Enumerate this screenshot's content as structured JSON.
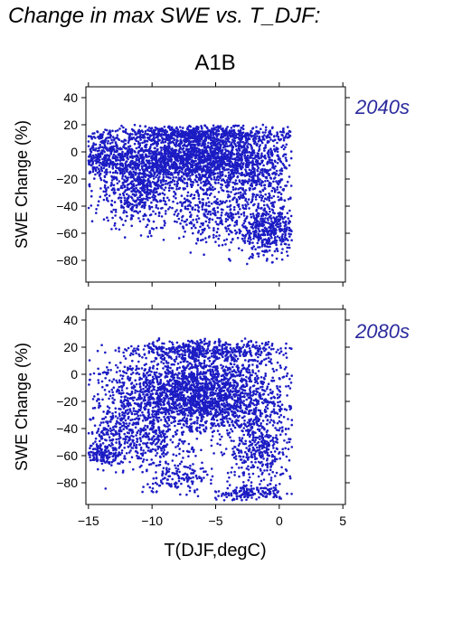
{
  "title": "Change in max SWE vs. T_DJF:",
  "scenario": "A1B",
  "colors": {
    "points": "#1c1cc4",
    "period_text": "#2b2b9e"
  },
  "chart_data": [
    {
      "type": "scatter",
      "panel_label": "2040s",
      "ylabel": "SWE Change (%)",
      "xlabel": "",
      "xlim": [
        -15.2,
        5.2
      ],
      "ylim": [
        -96,
        48
      ],
      "yticks": [
        40,
        20,
        0,
        -20,
        -40,
        -60,
        -80
      ],
      "xticks": [
        -15,
        -10,
        -5,
        0,
        5
      ],
      "x_tick_labels_shown": false,
      "points_per_cluster": "dense cloud",
      "clusters": [
        {
          "x": -7,
          "y": -5,
          "sx": 3.8,
          "sy": 10,
          "n": 2200
        },
        {
          "x": -11,
          "y": -30,
          "sx": 1.8,
          "sy": 13,
          "n": 500
        },
        {
          "x": -5.5,
          "y": -45,
          "sx": 1.8,
          "sy": 11,
          "n": 300
        },
        {
          "x": -1,
          "y": -58,
          "sx": 1.2,
          "sy": 9,
          "n": 450
        },
        {
          "x": -6,
          "y": 13,
          "sx": 3.5,
          "sy": 3,
          "n": 600
        },
        {
          "x": -14,
          "y": -2,
          "sx": 0.8,
          "sy": 9,
          "n": 180
        },
        {
          "x": -1.5,
          "y": -22,
          "sx": 1.5,
          "sy": 12,
          "n": 300
        }
      ],
      "y_range_observed": [
        -83,
        20
      ],
      "x_range_observed": [
        -15,
        1
      ]
    },
    {
      "type": "scatter",
      "panel_label": "2080s",
      "ylabel": "SWE Change (%)",
      "xlabel": "T(DJF,degC)",
      "xlim": [
        -15.2,
        5.2
      ],
      "ylim": [
        -96,
        48
      ],
      "yticks": [
        40,
        20,
        0,
        -20,
        -40,
        -60,
        -80
      ],
      "xticks": [
        -15,
        -10,
        -5,
        0,
        5
      ],
      "x_tick_labels_shown": true,
      "clusters": [
        {
          "x": -6.5,
          "y": -15,
          "sx": 3.5,
          "sy": 14,
          "n": 2300
        },
        {
          "x": -11.5,
          "y": -45,
          "sx": 2.3,
          "sy": 12,
          "n": 550
        },
        {
          "x": -5.5,
          "y": 17,
          "sx": 3.2,
          "sy": 4,
          "n": 500
        },
        {
          "x": -2.5,
          "y": -88,
          "sx": 1.3,
          "sy": 3,
          "n": 160
        },
        {
          "x": -1.5,
          "y": -55,
          "sx": 1.4,
          "sy": 14,
          "n": 400
        },
        {
          "x": -14,
          "y": -60,
          "sx": 0.8,
          "sy": 3,
          "n": 120
        },
        {
          "x": -8,
          "y": -75,
          "sx": 1.4,
          "sy": 6,
          "n": 140
        }
      ],
      "y_range_observed": [
        -93,
        27
      ],
      "x_range_observed": [
        -15,
        1
      ]
    }
  ]
}
